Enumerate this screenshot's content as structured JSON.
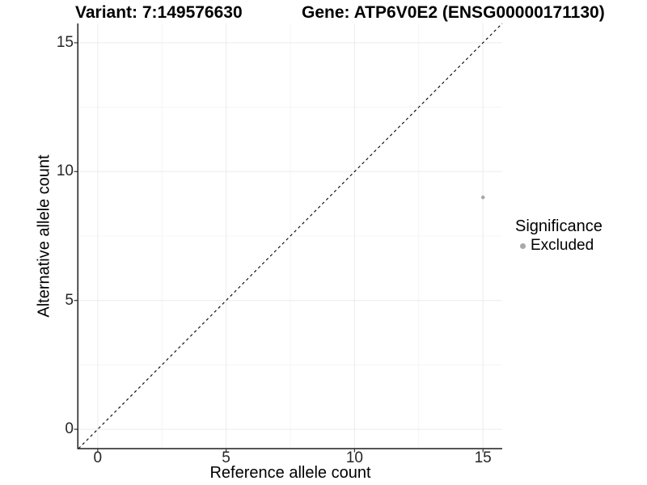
{
  "header": {
    "variant_title": "Variant: 7:149576630",
    "gene_title": "Gene: ATP6V0E2 (ENSG00000171130)"
  },
  "chart_data": {
    "type": "scatter",
    "title_left": "Variant: 7:149576630",
    "title_right": "Gene: ATP6V0E2 (ENSG00000171130)",
    "xlabel": "Reference allele count",
    "ylabel": "Alternative allele count",
    "xlim": [
      -0.75,
      15.75
    ],
    "ylim": [
      -0.75,
      15.75
    ],
    "xticks": [
      0,
      5,
      10,
      15
    ],
    "yticks": [
      0,
      5,
      10,
      15
    ],
    "minor_xticks": [
      2.5,
      7.5,
      12.5
    ],
    "minor_yticks": [
      2.5,
      7.5,
      12.5
    ],
    "grid": true,
    "identity_line": {
      "slope": 1,
      "intercept": 0,
      "style": "dashed",
      "color": "#000000"
    },
    "series": [
      {
        "name": "Excluded",
        "color": "#a9a9a9",
        "points": [
          {
            "x": 15,
            "y": 9
          }
        ]
      }
    ],
    "legend": {
      "title": "Significance",
      "position": "right",
      "entries": [
        {
          "label": "Excluded",
          "color": "#a9a9a9"
        }
      ]
    }
  },
  "colors": {
    "background": "#ffffff",
    "grid_major": "#ececec",
    "grid_minor": "#f4f4f4",
    "axis_line": "#1f1f1f",
    "tick_mark": "#333333",
    "tick_text": "#262626",
    "point": "#a9a9a9",
    "text": "#000000"
  }
}
